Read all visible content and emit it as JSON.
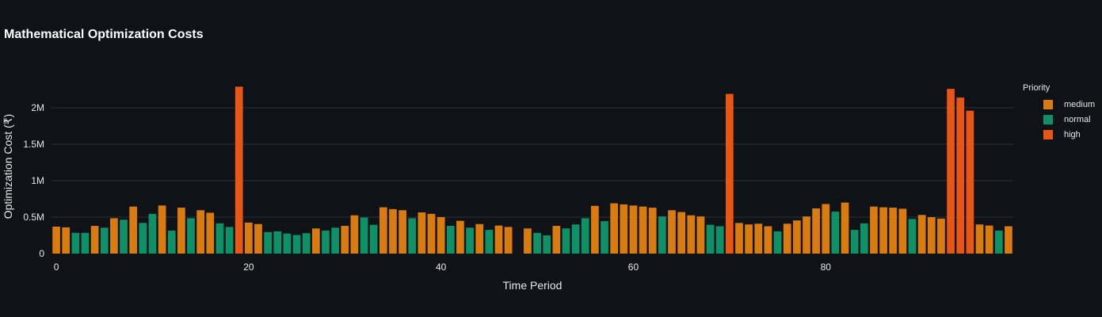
{
  "chart_data": {
    "type": "bar",
    "title": "Mathematical Optimization Costs",
    "xlabel": "Time Period",
    "ylabel": "Optimization Cost (₹)",
    "xlim": [
      -0.5,
      99.5
    ],
    "ylim": [
      0,
      2500000
    ],
    "x_ticks": [
      0,
      20,
      40,
      60,
      80
    ],
    "y_ticks": [
      0,
      500000,
      1000000,
      1500000,
      2000000
    ],
    "y_tick_labels": [
      "0",
      "0.5M",
      "1M",
      "1.5M",
      "2M"
    ],
    "grid": true,
    "legend_position": "right",
    "legend": {
      "title": "Priority",
      "entries": [
        {
          "name": "medium",
          "color": "#d97b0f"
        },
        {
          "name": "normal",
          "color": "#0f9168"
        },
        {
          "name": "high",
          "color": "#e85614"
        }
      ]
    },
    "colors": {
      "medium": "#d97b0f",
      "normal": "#0f9168",
      "high": "#e85614",
      "background": "#0f1217"
    },
    "points": [
      {
        "x": 0,
        "value": 370000,
        "priority": "medium"
      },
      {
        "x": 1,
        "value": 360000,
        "priority": "medium"
      },
      {
        "x": 2,
        "value": 285000,
        "priority": "normal"
      },
      {
        "x": 3,
        "value": 285000,
        "priority": "normal"
      },
      {
        "x": 4,
        "value": 380000,
        "priority": "medium"
      },
      {
        "x": 5,
        "value": 355000,
        "priority": "normal"
      },
      {
        "x": 6,
        "value": 485000,
        "priority": "medium"
      },
      {
        "x": 7,
        "value": 465000,
        "priority": "normal"
      },
      {
        "x": 8,
        "value": 645000,
        "priority": "medium"
      },
      {
        "x": 9,
        "value": 420000,
        "priority": "normal"
      },
      {
        "x": 10,
        "value": 545000,
        "priority": "normal"
      },
      {
        "x": 11,
        "value": 660000,
        "priority": "medium"
      },
      {
        "x": 12,
        "value": 315000,
        "priority": "normal"
      },
      {
        "x": 13,
        "value": 630000,
        "priority": "medium"
      },
      {
        "x": 14,
        "value": 485000,
        "priority": "normal"
      },
      {
        "x": 15,
        "value": 595000,
        "priority": "medium"
      },
      {
        "x": 16,
        "value": 560000,
        "priority": "medium"
      },
      {
        "x": 17,
        "value": 415000,
        "priority": "normal"
      },
      {
        "x": 18,
        "value": 365000,
        "priority": "normal"
      },
      {
        "x": 19,
        "value": 2290000,
        "priority": "high"
      },
      {
        "x": 20,
        "value": 425000,
        "priority": "medium"
      },
      {
        "x": 21,
        "value": 405000,
        "priority": "medium"
      },
      {
        "x": 22,
        "value": 295000,
        "priority": "normal"
      },
      {
        "x": 23,
        "value": 305000,
        "priority": "normal"
      },
      {
        "x": 24,
        "value": 275000,
        "priority": "normal"
      },
      {
        "x": 25,
        "value": 255000,
        "priority": "normal"
      },
      {
        "x": 26,
        "value": 280000,
        "priority": "normal"
      },
      {
        "x": 27,
        "value": 345000,
        "priority": "medium"
      },
      {
        "x": 28,
        "value": 315000,
        "priority": "normal"
      },
      {
        "x": 29,
        "value": 355000,
        "priority": "normal"
      },
      {
        "x": 30,
        "value": 380000,
        "priority": "medium"
      },
      {
        "x": 31,
        "value": 525000,
        "priority": "medium"
      },
      {
        "x": 32,
        "value": 495000,
        "priority": "normal"
      },
      {
        "x": 33,
        "value": 395000,
        "priority": "normal"
      },
      {
        "x": 34,
        "value": 635000,
        "priority": "medium"
      },
      {
        "x": 35,
        "value": 610000,
        "priority": "medium"
      },
      {
        "x": 36,
        "value": 595000,
        "priority": "medium"
      },
      {
        "x": 37,
        "value": 485000,
        "priority": "normal"
      },
      {
        "x": 38,
        "value": 565000,
        "priority": "medium"
      },
      {
        "x": 39,
        "value": 545000,
        "priority": "medium"
      },
      {
        "x": 40,
        "value": 500000,
        "priority": "medium"
      },
      {
        "x": 41,
        "value": 380000,
        "priority": "normal"
      },
      {
        "x": 42,
        "value": 450000,
        "priority": "medium"
      },
      {
        "x": 43,
        "value": 355000,
        "priority": "normal"
      },
      {
        "x": 44,
        "value": 405000,
        "priority": "medium"
      },
      {
        "x": 45,
        "value": 325000,
        "priority": "normal"
      },
      {
        "x": 46,
        "value": 385000,
        "priority": "medium"
      },
      {
        "x": 47,
        "value": 365000,
        "priority": "medium"
      },
      {
        "x": 49,
        "value": 345000,
        "priority": "medium"
      },
      {
        "x": 50,
        "value": 285000,
        "priority": "normal"
      },
      {
        "x": 51,
        "value": 250000,
        "priority": "normal"
      },
      {
        "x": 52,
        "value": 380000,
        "priority": "medium"
      },
      {
        "x": 53,
        "value": 345000,
        "priority": "normal"
      },
      {
        "x": 54,
        "value": 400000,
        "priority": "normal"
      },
      {
        "x": 55,
        "value": 485000,
        "priority": "normal"
      },
      {
        "x": 56,
        "value": 655000,
        "priority": "medium"
      },
      {
        "x": 57,
        "value": 445000,
        "priority": "normal"
      },
      {
        "x": 58,
        "value": 690000,
        "priority": "medium"
      },
      {
        "x": 59,
        "value": 675000,
        "priority": "medium"
      },
      {
        "x": 60,
        "value": 660000,
        "priority": "medium"
      },
      {
        "x": 61,
        "value": 645000,
        "priority": "medium"
      },
      {
        "x": 62,
        "value": 630000,
        "priority": "medium"
      },
      {
        "x": 63,
        "value": 510000,
        "priority": "normal"
      },
      {
        "x": 64,
        "value": 595000,
        "priority": "medium"
      },
      {
        "x": 65,
        "value": 570000,
        "priority": "medium"
      },
      {
        "x": 66,
        "value": 525000,
        "priority": "medium"
      },
      {
        "x": 67,
        "value": 510000,
        "priority": "medium"
      },
      {
        "x": 68,
        "value": 395000,
        "priority": "normal"
      },
      {
        "x": 69,
        "value": 375000,
        "priority": "normal"
      },
      {
        "x": 70,
        "value": 2190000,
        "priority": "high"
      },
      {
        "x": 71,
        "value": 420000,
        "priority": "medium"
      },
      {
        "x": 72,
        "value": 400000,
        "priority": "medium"
      },
      {
        "x": 73,
        "value": 410000,
        "priority": "medium"
      },
      {
        "x": 74,
        "value": 375000,
        "priority": "medium"
      },
      {
        "x": 75,
        "value": 305000,
        "priority": "normal"
      },
      {
        "x": 76,
        "value": 410000,
        "priority": "medium"
      },
      {
        "x": 77,
        "value": 455000,
        "priority": "medium"
      },
      {
        "x": 78,
        "value": 510000,
        "priority": "medium"
      },
      {
        "x": 79,
        "value": 620000,
        "priority": "medium"
      },
      {
        "x": 80,
        "value": 680000,
        "priority": "medium"
      },
      {
        "x": 81,
        "value": 575000,
        "priority": "normal"
      },
      {
        "x": 82,
        "value": 700000,
        "priority": "medium"
      },
      {
        "x": 83,
        "value": 325000,
        "priority": "normal"
      },
      {
        "x": 84,
        "value": 415000,
        "priority": "normal"
      },
      {
        "x": 85,
        "value": 645000,
        "priority": "medium"
      },
      {
        "x": 86,
        "value": 635000,
        "priority": "medium"
      },
      {
        "x": 87,
        "value": 630000,
        "priority": "medium"
      },
      {
        "x": 88,
        "value": 615000,
        "priority": "medium"
      },
      {
        "x": 89,
        "value": 475000,
        "priority": "normal"
      },
      {
        "x": 90,
        "value": 530000,
        "priority": "medium"
      },
      {
        "x": 91,
        "value": 500000,
        "priority": "medium"
      },
      {
        "x": 92,
        "value": 480000,
        "priority": "medium"
      },
      {
        "x": 93,
        "value": 2260000,
        "priority": "high"
      },
      {
        "x": 94,
        "value": 2140000,
        "priority": "high"
      },
      {
        "x": 95,
        "value": 1960000,
        "priority": "high"
      },
      {
        "x": 96,
        "value": 400000,
        "priority": "medium"
      },
      {
        "x": 97,
        "value": 385000,
        "priority": "medium"
      },
      {
        "x": 98,
        "value": 315000,
        "priority": "normal"
      },
      {
        "x": 99,
        "value": 375000,
        "priority": "medium"
      }
    ]
  }
}
